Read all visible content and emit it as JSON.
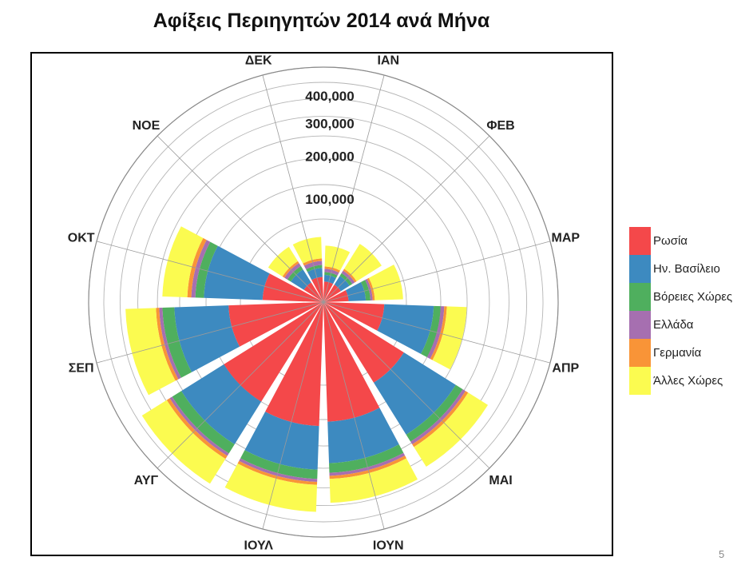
{
  "slide": {
    "title": "Αφίξεις Περιηγητών 2014 ανά Μήνα",
    "page_number": "5"
  },
  "chart_data": {
    "type": "stacked-polar-bar",
    "title": "Αφίξεις Περιηγητών 2014 ανά Μήνα",
    "categories": [
      "ΙΑΝ",
      "ΦΕΒ",
      "ΜΑΡ",
      "ΑΠΡ",
      "ΜΑΙ",
      "ΙΟΥΝ",
      "ΙΟΥΛ",
      "ΑΥΓ",
      "ΣΕΠ",
      "ΟΚΤ",
      "ΝΟΕ",
      "ΔΕΚ"
    ],
    "radial_ticks": [
      100000,
      200000,
      300000,
      400000
    ],
    "radial_tick_labels": [
      "100,000",
      "200,000",
      "300,000",
      "400,000"
    ],
    "rmax": 520000,
    "grid": true,
    "legend_position": "right",
    "series": [
      {
        "name": "Ρωσία",
        "color": "#F4484A",
        "values": [
          4000,
          4000,
          6000,
          35000,
          85000,
          135000,
          145000,
          130000,
          85000,
          35000,
          5000,
          6000
        ]
      },
      {
        "name": "Ην. Βασίλειο",
        "color": "#3D8AC0",
        "values": [
          3000,
          5000,
          11000,
          80000,
          145000,
          110000,
          120000,
          135000,
          125000,
          100000,
          9000,
          5000
        ]
      },
      {
        "name": "Βόρειες Χώρες",
        "color": "#4FAF5E",
        "values": [
          1500,
          2000,
          4000,
          15000,
          25000,
          30000,
          30000,
          35000,
          35000,
          20000,
          3000,
          2000
        ]
      },
      {
        "name": "Ελλάδα",
        "color": "#A66FB0",
        "values": [
          2000,
          2000,
          2000,
          8000,
          10000,
          10000,
          10000,
          10000,
          10000,
          10000,
          3000,
          3000
        ]
      },
      {
        "name": "Γερμανία",
        "color": "#F99437",
        "values": [
          1500,
          1500,
          2000,
          6000,
          10000,
          10000,
          10000,
          12000,
          10000,
          10000,
          2000,
          2000
        ]
      },
      {
        "name": "Άλλες Χώρες",
        "color": "#FBFB50",
        "values": [
          18000,
          30000,
          35000,
          50000,
          80000,
          85000,
          100000,
          110000,
          105000,
          70000,
          18000,
          22000
        ]
      }
    ]
  }
}
